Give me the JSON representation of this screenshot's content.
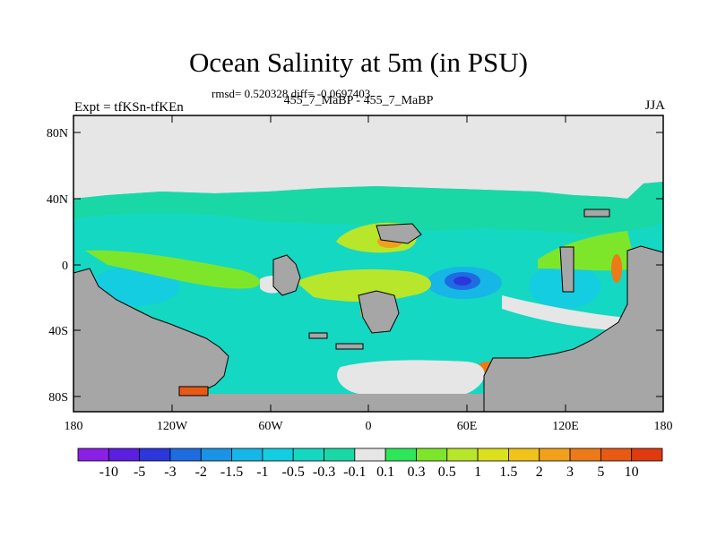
{
  "title": "Ocean Salinity at 5m (in PSU)",
  "stats": "rmsd= 0.520328 diff= -0.0697403",
  "experiment": "Expt = tfKSn-tfKEn",
  "comparison": "455_7_MaBP - 455_7_MaBP",
  "season": "JJA",
  "map": {
    "lon_ticks": [
      "180",
      "120W",
      "60W",
      "0",
      "60E",
      "120E",
      "180"
    ],
    "lat_ticks": [
      "80N",
      "40N",
      "0",
      "40S",
      "80S"
    ],
    "land_color": "#a6a6a6",
    "no_change_color": "#e6e6e6"
  },
  "colorbar": {
    "labels": [
      "-10",
      "-5",
      "-3",
      "-2",
      "-1.5",
      "-1",
      "-0.5",
      "-0.3",
      "-0.1",
      "0.1",
      "0.3",
      "0.5",
      "1",
      "1.5",
      "2",
      "3",
      "5",
      "10"
    ],
    "colors": [
      "#8a1fe6",
      "#5a1fe0",
      "#2b36db",
      "#1e6ce0",
      "#1a93e6",
      "#16b6e6",
      "#14cde0",
      "#14d8c2",
      "#1ad8a6",
      "#e6e6e6",
      "#2ee65a",
      "#7ee62a",
      "#b8e62a",
      "#dce01c",
      "#f0c21a",
      "#f0a01a",
      "#ec7a16",
      "#e85a14",
      "#e03a10"
    ]
  }
}
